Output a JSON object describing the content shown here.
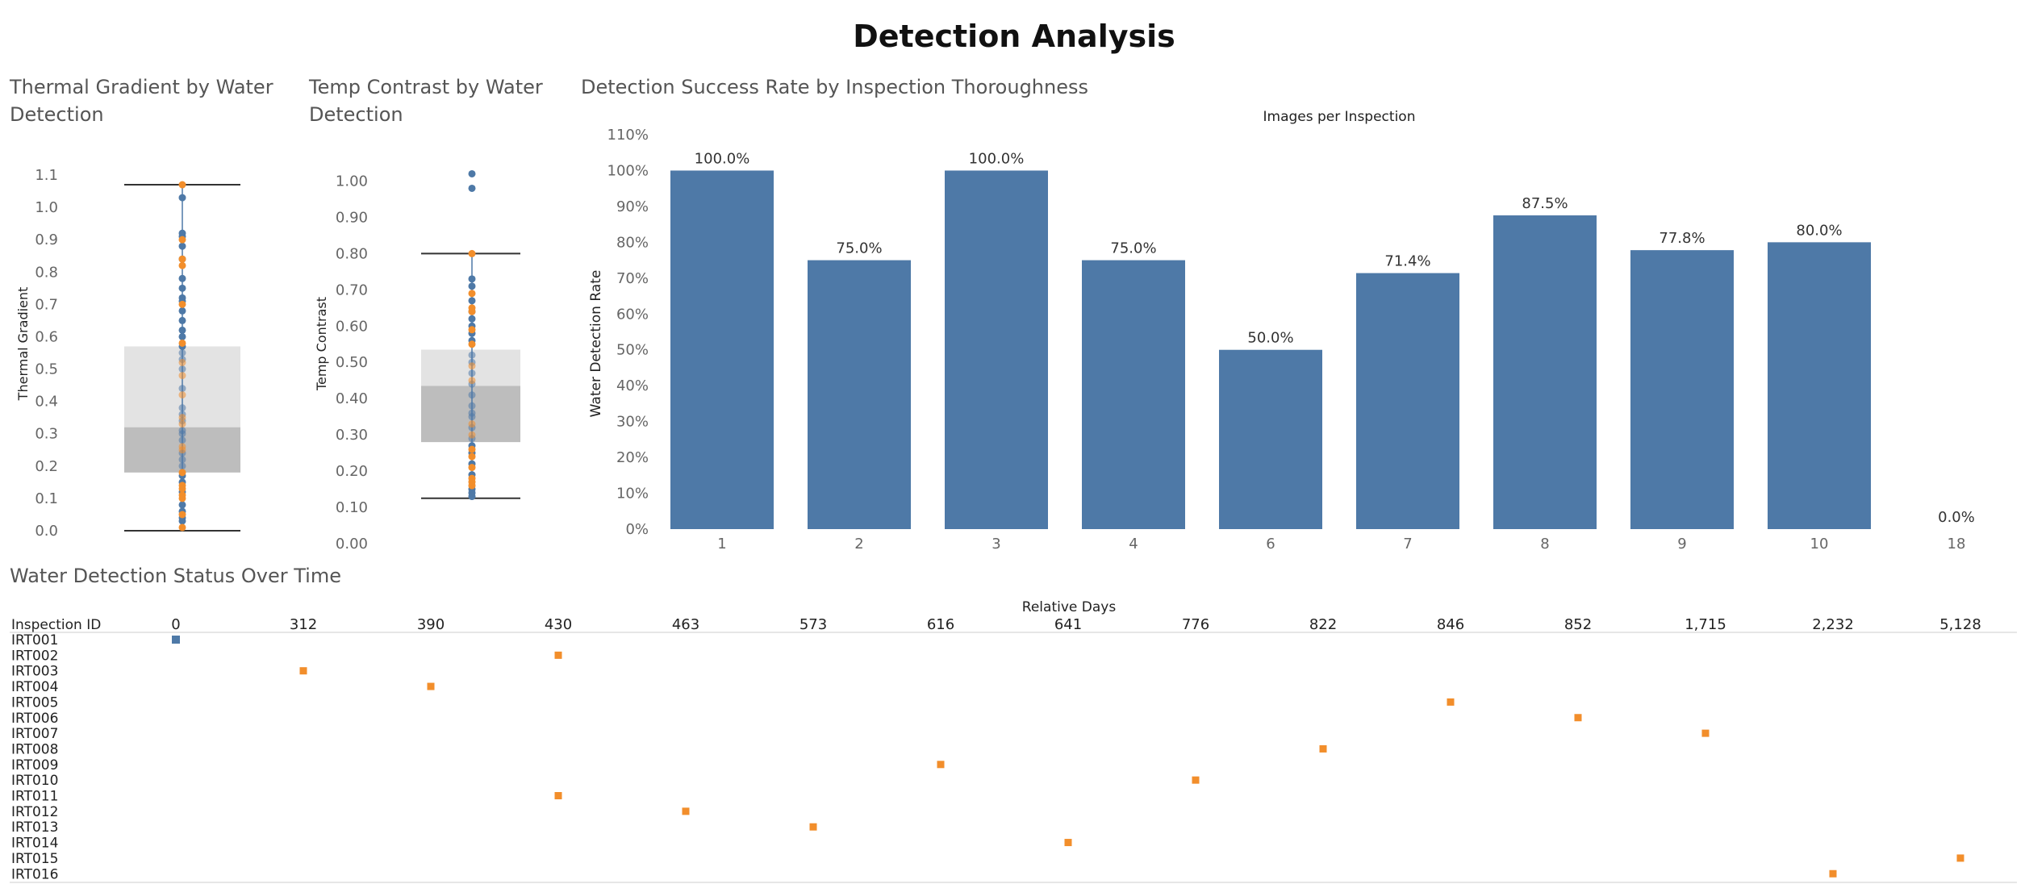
{
  "dashboard": {
    "title": "Detection Analysis"
  },
  "colors": {
    "blue": "#4e79a7",
    "orange": "#f28e2b",
    "box_upper": "#e3e3e3",
    "box_lower": "#bdbdbd",
    "whisker": "#333333"
  },
  "chart_data": [
    {
      "type": "scatter",
      "subtype": "boxplot-with-points",
      "title": "Thermal Gradient by Water Detection",
      "xlabel": "",
      "ylabel": "Thermal Gradient",
      "ylim": [
        0.0,
        1.1
      ],
      "yticks": [
        {
          "v": 1.1,
          "label": "1.1"
        },
        {
          "v": 1.0,
          "label": "1.0"
        },
        {
          "v": 0.9,
          "label": "0.9"
        },
        {
          "v": 0.8,
          "label": "0.8"
        },
        {
          "v": 0.7,
          "label": "0.7"
        },
        {
          "v": 0.6,
          "label": "0.6"
        },
        {
          "v": 0.5,
          "label": "0.5"
        },
        {
          "v": 0.4,
          "label": "0.4"
        },
        {
          "v": 0.3,
          "label": "0.3"
        },
        {
          "v": 0.2,
          "label": "0.2"
        },
        {
          "v": 0.1,
          "label": "0.1"
        },
        {
          "v": 0.0,
          "label": "0.0"
        }
      ],
      "box": {
        "whisker_low": 0.0,
        "q1": 0.18,
        "median": 0.32,
        "q3": 0.57,
        "whisker_high": 1.07
      },
      "series": [
        {
          "color": "blue",
          "values": [
            1.03,
            0.92,
            0.91,
            0.88,
            0.84,
            0.78,
            0.75,
            0.72,
            0.71,
            0.68,
            0.65,
            0.62,
            0.6,
            0.57,
            0.55,
            0.53,
            0.5,
            0.44,
            0.38,
            0.36,
            0.34,
            0.31,
            0.3,
            0.28,
            0.24,
            0.22,
            0.2,
            0.17,
            0.15,
            0.12,
            0.08,
            0.06,
            0.04,
            0.03
          ]
        },
        {
          "color": "orange",
          "values": [
            1.07,
            0.9,
            0.84,
            0.82,
            0.7,
            0.58,
            0.52,
            0.48,
            0.42,
            0.35,
            0.33,
            0.26,
            0.25,
            0.18,
            0.14,
            0.13,
            0.11,
            0.1,
            0.05,
            0.01
          ]
        }
      ]
    },
    {
      "type": "scatter",
      "subtype": "boxplot-with-points",
      "title": "Temp Contrast by Water Detection",
      "xlabel": "",
      "ylabel": "Temp Contrast",
      "ylim": [
        0.0,
        1.05
      ],
      "yticks": [
        {
          "v": 1.0,
          "label": "1.00"
        },
        {
          "v": 0.9,
          "label": "0.90"
        },
        {
          "v": 0.8,
          "label": "0.80"
        },
        {
          "v": 0.7,
          "label": "0.70"
        },
        {
          "v": 0.6,
          "label": "0.60"
        },
        {
          "v": 0.5,
          "label": "0.50"
        },
        {
          "v": 0.4,
          "label": "0.40"
        },
        {
          "v": 0.3,
          "label": "0.30"
        },
        {
          "v": 0.2,
          "label": "0.20"
        },
        {
          "v": 0.1,
          "label": "0.10"
        },
        {
          "v": 0.0,
          "label": "0.00"
        }
      ],
      "box": {
        "whisker_low": 0.125,
        "q1": 0.28,
        "median": 0.435,
        "q3": 0.535,
        "whisker_high": 0.8
      },
      "series": [
        {
          "color": "blue",
          "values": [
            1.02,
            0.98,
            0.73,
            0.71,
            0.67,
            0.64,
            0.62,
            0.6,
            0.58,
            0.56,
            0.52,
            0.5,
            0.47,
            0.44,
            0.41,
            0.38,
            0.36,
            0.35,
            0.32,
            0.29,
            0.27,
            0.25,
            0.22,
            0.19,
            0.15,
            0.14,
            0.13
          ]
        },
        {
          "color": "orange",
          "values": [
            0.8,
            0.69,
            0.65,
            0.64,
            0.59,
            0.55,
            0.49,
            0.45,
            0.33,
            0.3,
            0.26,
            0.24,
            0.21,
            0.18,
            0.17,
            0.16
          ]
        }
      ]
    },
    {
      "type": "bar",
      "title": "Detection Success Rate by Inspection Thoroughness",
      "xlabel": "Images per Inspection",
      "ylabel": "Water Detection Rate",
      "ylim": [
        0,
        110
      ],
      "yticks": [
        {
          "v": 110,
          "label": "110%"
        },
        {
          "v": 100,
          "label": "100%"
        },
        {
          "v": 90,
          "label": "90%"
        },
        {
          "v": 80,
          "label": "80%"
        },
        {
          "v": 70,
          "label": "70%"
        },
        {
          "v": 60,
          "label": "60%"
        },
        {
          "v": 50,
          "label": "50%"
        },
        {
          "v": 40,
          "label": "40%"
        },
        {
          "v": 30,
          "label": "30%"
        },
        {
          "v": 20,
          "label": "20%"
        },
        {
          "v": 10,
          "label": "10%"
        },
        {
          "v": 0,
          "label": "0%"
        }
      ],
      "categories": [
        "1",
        "2",
        "3",
        "4",
        "6",
        "7",
        "8",
        "9",
        "10",
        "18"
      ],
      "values": [
        100.0,
        75.0,
        100.0,
        75.0,
        50.0,
        71.4,
        87.5,
        77.8,
        80.0,
        0.0
      ],
      "value_labels": [
        "100.0%",
        "75.0%",
        "100.0%",
        "75.0%",
        "50.0%",
        "71.4%",
        "87.5%",
        "77.8%",
        "80.0%",
        "0.0%"
      ],
      "color": "blue"
    },
    {
      "type": "scatter",
      "subtype": "categorical-grid",
      "title": "Water Detection Status Over Time",
      "xlabel": "Relative Days",
      "ylabel": "Inspection ID",
      "x_categories": [
        "0",
        "312",
        "390",
        "430",
        "463",
        "573",
        "616",
        "641",
        "776",
        "822",
        "846",
        "852",
        "1,715",
        "2,232",
        "5,128"
      ],
      "y_categories": [
        "IRT001",
        "IRT002",
        "IRT003",
        "IRT004",
        "IRT005",
        "IRT006",
        "IRT007",
        "IRT008",
        "IRT009",
        "IRT010",
        "IRT011",
        "IRT012",
        "IRT013",
        "IRT014",
        "IRT015",
        "IRT016"
      ],
      "points": [
        {
          "id": "IRT001",
          "day": "0",
          "color": "blue"
        },
        {
          "id": "IRT002",
          "day": "430",
          "color": "orange"
        },
        {
          "id": "IRT003",
          "day": "312",
          "color": "orange"
        },
        {
          "id": "IRT004",
          "day": "390",
          "color": "orange"
        },
        {
          "id": "IRT005",
          "day": "846",
          "color": "orange"
        },
        {
          "id": "IRT006",
          "day": "852",
          "color": "orange"
        },
        {
          "id": "IRT007",
          "day": "1,715",
          "color": "orange"
        },
        {
          "id": "IRT008",
          "day": "822",
          "color": "orange"
        },
        {
          "id": "IRT009",
          "day": "616",
          "color": "orange"
        },
        {
          "id": "IRT010",
          "day": "776",
          "color": "orange"
        },
        {
          "id": "IRT011",
          "day": "430",
          "color": "orange"
        },
        {
          "id": "IRT012",
          "day": "463",
          "color": "orange"
        },
        {
          "id": "IRT013",
          "day": "573",
          "color": "orange"
        },
        {
          "id": "IRT014",
          "day": "641",
          "color": "orange"
        },
        {
          "id": "IRT015",
          "day": "5,128",
          "color": "orange"
        },
        {
          "id": "IRT016",
          "day": "2,232",
          "color": "orange"
        }
      ]
    }
  ]
}
